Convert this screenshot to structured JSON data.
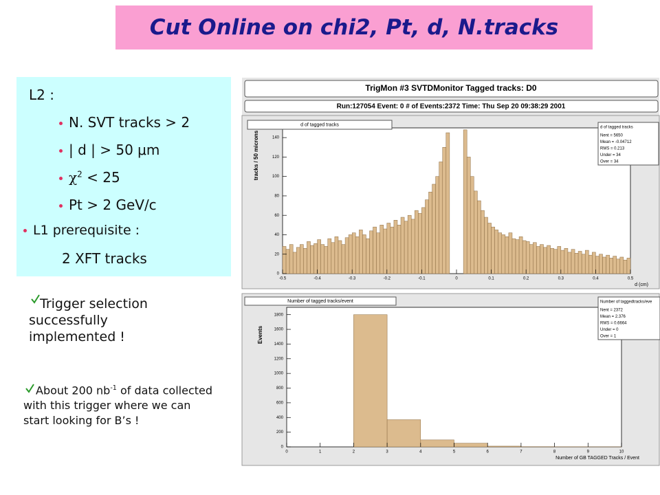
{
  "slide": {
    "title": "Cut Online on chi2, Pt, d, N.tracks",
    "l2_heading": "L2 :",
    "l2_items": [
      "N. SVT tracks > 2",
      "| d | > 50 μm",
      {
        "symbol": "χ",
        "sup": "2",
        "text": "< 25"
      },
      "Pt > 2 GeV/c"
    ],
    "l1_heading": "L1 prerequisite :",
    "l1_item": "2 XFT tracks",
    "note1": "Trigger selection successfully implemented !",
    "note2": {
      "start": "About 200 nb",
      "sup": "-1",
      "rest": "of data collected with this trigger where we can start looking for B’s !"
    }
  },
  "monitor": {
    "header": "TrigMon #3 SVTDMonitor   Tagged tracks: D0",
    "run_info": "Run:127054 Event: 0 # of Events:2372 Time: Thu Sep 20 09:38:29 2001"
  },
  "chart_data": [
    {
      "type": "histogram",
      "title": "d of tagged tracks",
      "x_label": "d (cm)",
      "y_label": "tracks / 50 microns",
      "color": "#dcbb8e",
      "bins": [
        -0.5,
        -0.49,
        -0.48,
        -0.47,
        -0.46,
        -0.45,
        -0.44,
        -0.43,
        -0.42,
        -0.41,
        -0.4,
        -0.39,
        -0.38,
        -0.37,
        -0.36,
        -0.35,
        -0.34,
        -0.33,
        -0.32,
        -0.31,
        -0.3,
        -0.29,
        -0.28,
        -0.27,
        -0.26,
        -0.25,
        -0.24,
        -0.23,
        -0.22,
        -0.21,
        -0.2,
        -0.19,
        -0.18,
        -0.17,
        -0.16,
        -0.15,
        -0.14,
        -0.13,
        -0.12,
        -0.11,
        -0.1,
        -0.09,
        -0.08,
        -0.07,
        -0.06,
        -0.05,
        -0.04,
        -0.03,
        -0.02,
        -0.01,
        0,
        0.01,
        0.02,
        0.03,
        0.04,
        0.05,
        0.06,
        0.07,
        0.08,
        0.09,
        0.1,
        0.11,
        0.12,
        0.13,
        0.14,
        0.15,
        0.16,
        0.17,
        0.18,
        0.19,
        0.2,
        0.21,
        0.22,
        0.23,
        0.24,
        0.25,
        0.26,
        0.27,
        0.28,
        0.29,
        0.3,
        0.31,
        0.32,
        0.33,
        0.34,
        0.35,
        0.36,
        0.37,
        0.38,
        0.39,
        0.4,
        0.41,
        0.42,
        0.43,
        0.44,
        0.45,
        0.46,
        0.47,
        0.48,
        0.49,
        0.5
      ],
      "values": [
        28,
        25,
        30,
        22,
        27,
        30,
        26,
        33,
        29,
        31,
        35,
        30,
        28,
        36,
        32,
        38,
        34,
        30,
        37,
        40,
        42,
        38,
        45,
        40,
        36,
        44,
        48,
        42,
        50,
        46,
        52,
        48,
        55,
        50,
        58,
        54,
        60,
        56,
        65,
        62,
        68,
        76,
        84,
        92,
        100,
        115,
        130,
        145,
        0,
        0,
        0,
        0,
        148,
        120,
        100,
        85,
        75,
        65,
        58,
        52,
        48,
        45,
        42,
        40,
        38,
        42,
        36,
        35,
        38,
        34,
        33,
        30,
        32,
        28,
        30,
        27,
        29,
        26,
        25,
        28,
        24,
        26,
        22,
        25,
        21,
        23,
        20,
        24,
        19,
        22,
        18,
        20,
        17,
        19,
        16,
        18,
        15,
        17,
        14,
        16
      ],
      "xlim": [
        -0.5,
        0.5
      ],
      "xticks": [
        -0.5,
        -0.4,
        -0.3,
        -0.2,
        -0.1,
        0,
        0.1,
        0.2,
        0.3,
        0.4,
        0.5
      ],
      "ylim": [
        0,
        150
      ],
      "yticks": [
        0,
        20,
        40,
        60,
        80,
        100,
        120,
        140
      ],
      "stats": {
        "title": "d of tagged tracks",
        "lines": [
          "Nent = 5650",
          "Mean = -0.04712",
          "RMS = 0.213",
          "Under = 34",
          "Over = 34"
        ]
      }
    },
    {
      "type": "histogram",
      "title": "Number of tagged tracks/event",
      "x_label": "Number of GB TAGGED Tracks / Event",
      "y_label": "Events",
      "color": "#dcbb8e",
      "bins": [
        0,
        1,
        2,
        3,
        4,
        5,
        6,
        7,
        8,
        9,
        10
      ],
      "values": [
        0,
        0,
        1800,
        370,
        95,
        50,
        10,
        3,
        2,
        1
      ],
      "xlim": [
        0,
        10
      ],
      "xticks": [
        0,
        1,
        2,
        3,
        4,
        5,
        6,
        7,
        8,
        9,
        10
      ],
      "ylim": [
        0,
        1900
      ],
      "yticks": [
        0,
        200,
        400,
        600,
        800,
        1000,
        1200,
        1400,
        1600,
        1800
      ],
      "stats": {
        "title": "Number of taggedtracks/eve",
        "lines": [
          "Nent = 2372",
          "Mean = 2.376",
          "RMS = 0.6664",
          "Under = 0",
          "Over = 1"
        ]
      }
    }
  ]
}
